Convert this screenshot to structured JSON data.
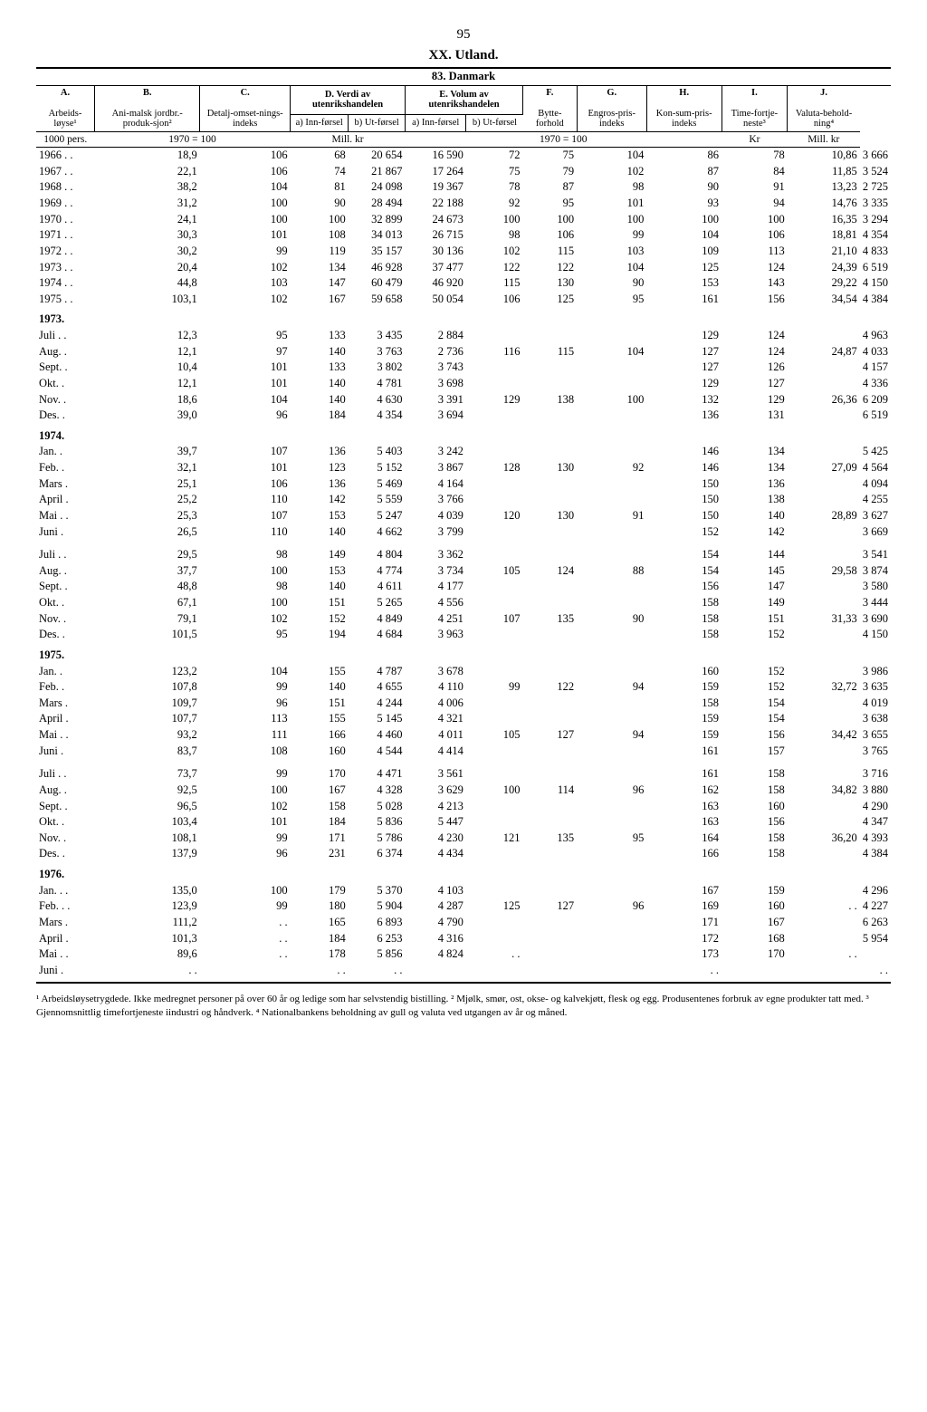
{
  "page_number": "95",
  "title": "XX. Utland.",
  "subtitle": "83. Danmark",
  "columns": {
    "A": "A.",
    "B": "B.",
    "C": "C.",
    "D": "D. Verdi av utenrikshandelen",
    "E": "E. Volum av utenrikshandelen",
    "F": "F.",
    "G": "G.",
    "H": "H.",
    "I": "I.",
    "J": "J."
  },
  "subheaders": {
    "A": "Arbeids-løyse¹",
    "B": "Ani-malsk jordbr.-produk-sjon²",
    "C": "Detalj-omset-nings-indeks",
    "Da": "a) Inn-førsel",
    "Db": "b) Ut-førsel",
    "Ea": "a) Inn-førsel",
    "Eb": "b) Ut-førsel",
    "F": "Bytte-forhold",
    "G": "Engros-pris-indeks",
    "H": "Kon-sum-pris-indeks",
    "I": "Time-fortje-neste³",
    "J": "Valuta-behold-ning⁴"
  },
  "units": {
    "A": "1000 pers.",
    "BCEF": "1970 = 100",
    "D": "Mill. kr",
    "GH": "1970 = 100",
    "I": "Kr",
    "J": "Mill. kr"
  },
  "years": [
    {
      "label": "1966 . .",
      "A": "18,9",
      "B": "106",
      "C": "68",
      "Da": "20 654",
      "Db": "16 590",
      "Ea": "72",
      "Eb": "75",
      "F": "104",
      "G": "86",
      "H": "78",
      "I": "10,86",
      "J": "3 666"
    },
    {
      "label": "1967 . .",
      "A": "22,1",
      "B": "106",
      "C": "74",
      "Da": "21 867",
      "Db": "17 264",
      "Ea": "75",
      "Eb": "79",
      "F": "102",
      "G": "87",
      "H": "84",
      "I": "11,85",
      "J": "3 524"
    },
    {
      "label": "1968 . .",
      "A": "38,2",
      "B": "104",
      "C": "81",
      "Da": "24 098",
      "Db": "19 367",
      "Ea": "78",
      "Eb": "87",
      "F": "98",
      "G": "90",
      "H": "91",
      "I": "13,23",
      "J": "2 725"
    },
    {
      "label": "1969 . .",
      "A": "31,2",
      "B": "100",
      "C": "90",
      "Da": "28 494",
      "Db": "22 188",
      "Ea": "92",
      "Eb": "95",
      "F": "101",
      "G": "93",
      "H": "94",
      "I": "14,76",
      "J": "3 335"
    },
    {
      "label": "1970 . .",
      "A": "24,1",
      "B": "100",
      "C": "100",
      "Da": "32 899",
      "Db": "24 673",
      "Ea": "100",
      "Eb": "100",
      "F": "100",
      "G": "100",
      "H": "100",
      "I": "16,35",
      "J": "3 294"
    },
    {
      "label": "1971 . .",
      "A": "30,3",
      "B": "101",
      "C": "108",
      "Da": "34 013",
      "Db": "26 715",
      "Ea": "98",
      "Eb": "106",
      "F": "99",
      "G": "104",
      "H": "106",
      "I": "18,81",
      "J": "4 354"
    },
    {
      "label": "1972 . .",
      "A": "30,2",
      "B": "99",
      "C": "119",
      "Da": "35 157",
      "Db": "30 136",
      "Ea": "102",
      "Eb": "115",
      "F": "103",
      "G": "109",
      "H": "113",
      "I": "21,10",
      "J": "4 833"
    },
    {
      "label": "1973 . .",
      "A": "20,4",
      "B": "102",
      "C": "134",
      "Da": "46 928",
      "Db": "37 477",
      "Ea": "122",
      "Eb": "122",
      "F": "104",
      "G": "125",
      "H": "124",
      "I": "24,39",
      "J": "6 519"
    },
    {
      "label": "1974 . .",
      "A": "44,8",
      "B": "103",
      "C": "147",
      "Da": "60 479",
      "Db": "46 920",
      "Ea": "115",
      "Eb": "130",
      "F": "90",
      "G": "153",
      "H": "143",
      "I": "29,22",
      "J": "4 150"
    },
    {
      "label": "1975 . .",
      "A": "103,1",
      "B": "102",
      "C": "167",
      "Da": "59 658",
      "Db": "50 054",
      "Ea": "106",
      "Eb": "125",
      "F": "95",
      "G": "161",
      "H": "156",
      "I": "34,54",
      "J": "4 384"
    }
  ],
  "sections": [
    {
      "header": "1973.",
      "rows": [
        {
          "label": "Juli  . .",
          "A": "12,3",
          "B": "95",
          "C": "133",
          "Da": "3 435",
          "Db": "2 884",
          "Ea": "",
          "Eb": "",
          "F": "",
          "G": "129",
          "H": "124",
          "I": "",
          "J": "4 963"
        },
        {
          "label": "Aug.  .",
          "A": "12,1",
          "B": "97",
          "C": "140",
          "Da": "3 763",
          "Db": "2 736",
          "Ea": "116",
          "Eb": "115",
          "F": "104",
          "G": "127",
          "H": "124",
          "I": "24,87",
          "J": "4 033"
        },
        {
          "label": "Sept. .",
          "A": "10,4",
          "B": "101",
          "C": "133",
          "Da": "3 802",
          "Db": "3 743",
          "Ea": "",
          "Eb": "",
          "F": "",
          "G": "127",
          "H": "126",
          "I": "",
          "J": "4 157"
        },
        {
          "label": "Okt.  .",
          "A": "12,1",
          "B": "101",
          "C": "140",
          "Da": "4 781",
          "Db": "3 698",
          "Ea": "",
          "Eb": "",
          "F": "",
          "G": "129",
          "H": "127",
          "I": "",
          "J": "4 336"
        },
        {
          "label": "Nov.  .",
          "A": "18,6",
          "B": "104",
          "C": "140",
          "Da": "4 630",
          "Db": "3 391",
          "Ea": "129",
          "Eb": "138",
          "F": "100",
          "G": "132",
          "H": "129",
          "I": "26,36",
          "J": "6 209"
        },
        {
          "label": "Des.  .",
          "A": "39,0",
          "B": "96",
          "C": "184",
          "Da": "4 354",
          "Db": "3 694",
          "Ea": "",
          "Eb": "",
          "F": "",
          "G": "136",
          "H": "131",
          "I": "",
          "J": "6 519"
        }
      ]
    },
    {
      "header": "1974.",
      "rows": [
        {
          "label": "Jan.  .",
          "A": "39,7",
          "B": "107",
          "C": "136",
          "Da": "5 403",
          "Db": "3 242",
          "Ea": "",
          "Eb": "",
          "F": "",
          "G": "146",
          "H": "134",
          "I": "",
          "J": "5 425"
        },
        {
          "label": "Feb.  .",
          "A": "32,1",
          "B": "101",
          "C": "123",
          "Da": "5 152",
          "Db": "3 867",
          "Ea": "128",
          "Eb": "130",
          "F": "92",
          "G": "146",
          "H": "134",
          "I": "27,09",
          "J": "4 564"
        },
        {
          "label": "Mars  .",
          "A": "25,1",
          "B": "106",
          "C": "136",
          "Da": "5 469",
          "Db": "4 164",
          "Ea": "",
          "Eb": "",
          "F": "",
          "G": "150",
          "H": "136",
          "I": "",
          "J": "4 094"
        },
        {
          "label": "April .",
          "A": "25,2",
          "B": "110",
          "C": "142",
          "Da": "5 559",
          "Db": "3 766",
          "Ea": "",
          "Eb": "",
          "F": "",
          "G": "150",
          "H": "138",
          "I": "",
          "J": "4 255"
        },
        {
          "label": "Mai  . .",
          "A": "25,3",
          "B": "107",
          "C": "153",
          "Da": "5 247",
          "Db": "4 039",
          "Ea": "120",
          "Eb": "130",
          "F": "91",
          "G": "150",
          "H": "140",
          "I": "28,89",
          "J": "3 627"
        },
        {
          "label": "Juni  .",
          "A": "26,5",
          "B": "110",
          "C": "140",
          "Da": "4 662",
          "Db": "3 799",
          "Ea": "",
          "Eb": "",
          "F": "",
          "G": "152",
          "H": "142",
          "I": "",
          "J": "3 669"
        }
      ]
    },
    {
      "header": "",
      "rows": [
        {
          "label": "Juli  . .",
          "A": "29,5",
          "B": "98",
          "C": "149",
          "Da": "4 804",
          "Db": "3 362",
          "Ea": "",
          "Eb": "",
          "F": "",
          "G": "154",
          "H": "144",
          "I": "",
          "J": "3 541"
        },
        {
          "label": "Aug.  .",
          "A": "37,7",
          "B": "100",
          "C": "153",
          "Da": "4 774",
          "Db": "3 734",
          "Ea": "105",
          "Eb": "124",
          "F": "88",
          "G": "154",
          "H": "145",
          "I": "29,58",
          "J": "3 874"
        },
        {
          "label": "Sept. .",
          "A": "48,8",
          "B": "98",
          "C": "140",
          "Da": "4 611",
          "Db": "4 177",
          "Ea": "",
          "Eb": "",
          "F": "",
          "G": "156",
          "H": "147",
          "I": "",
          "J": "3 580"
        },
        {
          "label": "Okt.  .",
          "A": "67,1",
          "B": "100",
          "C": "151",
          "Da": "5 265",
          "Db": "4 556",
          "Ea": "",
          "Eb": "",
          "F": "",
          "G": "158",
          "H": "149",
          "I": "",
          "J": "3 444"
        },
        {
          "label": "Nov.  .",
          "A": "79,1",
          "B": "102",
          "C": "152",
          "Da": "4 849",
          "Db": "4 251",
          "Ea": "107",
          "Eb": "135",
          "F": "90",
          "G": "158",
          "H": "151",
          "I": "31,33",
          "J": "3 690"
        },
        {
          "label": "Des.  .",
          "A": "101,5",
          "B": "95",
          "C": "194",
          "Da": "4 684",
          "Db": "3 963",
          "Ea": "",
          "Eb": "",
          "F": "",
          "G": "158",
          "H": "152",
          "I": "",
          "J": "4 150"
        }
      ]
    },
    {
      "header": "1975.",
      "rows": [
        {
          "label": "Jan.  .",
          "A": "123,2",
          "B": "104",
          "C": "155",
          "Da": "4 787",
          "Db": "3 678",
          "Ea": "",
          "Eb": "",
          "F": "",
          "G": "160",
          "H": "152",
          "I": "",
          "J": "3 986"
        },
        {
          "label": "Feb.  .",
          "A": "107,8",
          "B": "99",
          "C": "140",
          "Da": "4 655",
          "Db": "4 110",
          "Ea": "99",
          "Eb": "122",
          "F": "94",
          "G": "159",
          "H": "152",
          "I": "32,72",
          "J": "3 635"
        },
        {
          "label": "Mars  .",
          "A": "109,7",
          "B": "96",
          "C": "151",
          "Da": "4 244",
          "Db": "4 006",
          "Ea": "",
          "Eb": "",
          "F": "",
          "G": "158",
          "H": "154",
          "I": "",
          "J": "4 019"
        },
        {
          "label": "April .",
          "A": "107,7",
          "B": "113",
          "C": "155",
          "Da": "5 145",
          "Db": "4 321",
          "Ea": "",
          "Eb": "",
          "F": "",
          "G": "159",
          "H": "154",
          "I": "",
          "J": "3 638"
        },
        {
          "label": "Mai  . .",
          "A": "93,2",
          "B": "111",
          "C": "166",
          "Da": "4 460",
          "Db": "4 011",
          "Ea": "105",
          "Eb": "127",
          "F": "94",
          "G": "159",
          "H": "156",
          "I": "34,42",
          "J": "3 655"
        },
        {
          "label": "Juni  .",
          "A": "83,7",
          "B": "108",
          "C": "160",
          "Da": "4 544",
          "Db": "4 414",
          "Ea": "",
          "Eb": "",
          "F": "",
          "G": "161",
          "H": "157",
          "I": "",
          "J": "3 765"
        }
      ]
    },
    {
      "header": "",
      "rows": [
        {
          "label": "Juli  . .",
          "A": "73,7",
          "B": "99",
          "C": "170",
          "Da": "4 471",
          "Db": "3 561",
          "Ea": "",
          "Eb": "",
          "F": "",
          "G": "161",
          "H": "158",
          "I": "",
          "J": "3 716"
        },
        {
          "label": "Aug.  .",
          "A": "92,5",
          "B": "100",
          "C": "167",
          "Da": "4 328",
          "Db": "3 629",
          "Ea": "100",
          "Eb": "114",
          "F": "96",
          "G": "162",
          "H": "158",
          "I": "34,82",
          "J": "3 880"
        },
        {
          "label": "Sept. .",
          "A": "96,5",
          "B": "102",
          "C": "158",
          "Da": "5 028",
          "Db": "4 213",
          "Ea": "",
          "Eb": "",
          "F": "",
          "G": "163",
          "H": "160",
          "I": "",
          "J": "4 290"
        },
        {
          "label": "Okt.  .",
          "A": "103,4",
          "B": "101",
          "C": "184",
          "Da": "5 836",
          "Db": "5 447",
          "Ea": "",
          "Eb": "",
          "F": "",
          "G": "163",
          "H": "156",
          "I": "",
          "J": "4 347"
        },
        {
          "label": "Nov.  .",
          "A": "108,1",
          "B": "99",
          "C": "171",
          "Da": "5 786",
          "Db": "4 230",
          "Ea": "121",
          "Eb": "135",
          "F": "95",
          "G": "164",
          "H": "158",
          "I": "36,20",
          "J": "4 393"
        },
        {
          "label": "Des.  .",
          "A": "137,9",
          "B": "96",
          "C": "231",
          "Da": "6 374",
          "Db": "4 434",
          "Ea": "",
          "Eb": "",
          "F": "",
          "G": "166",
          "H": "158",
          "I": "",
          "J": "4 384"
        }
      ]
    },
    {
      "header": "1976.",
      "rows": [
        {
          "label": "Jan. . .",
          "A": "135,0",
          "B": "100",
          "C": "179",
          "Da": "5 370",
          "Db": "4 103",
          "Ea": "",
          "Eb": "",
          "F": "",
          "G": "167",
          "H": "159",
          "I": "",
          "J": "4 296"
        },
        {
          "label": "Feb. . .",
          "A": "123,9",
          "B": "99",
          "C": "180",
          "Da": "5 904",
          "Db": "4 287",
          "Ea": "125",
          "Eb": "127",
          "F": "96",
          "G": "169",
          "H": "160",
          "I": ". .",
          "J": "4 227"
        },
        {
          "label": "Mars  .",
          "A": "111,2",
          "B": ". .",
          "C": "165",
          "Da": "6 893",
          "Db": "4 790",
          "Ea": "",
          "Eb": "",
          "F": "",
          "G": "171",
          "H": "167",
          "I": "",
          "J": "6 263"
        },
        {
          "label": "April .",
          "A": "101,3",
          "B": ". .",
          "C": "184",
          "Da": "6 253",
          "Db": "4 316",
          "Ea": "",
          "Eb": "",
          "F": "",
          "G": "172",
          "H": "168",
          "I": "",
          "J": "5 954"
        },
        {
          "label": "Mai  . .",
          "A": "89,6",
          "B": ". .",
          "C": "178",
          "Da": "5 856",
          "Db": "4 824",
          "Ea": ". .",
          "Eb": "",
          "F": "",
          "G": "173",
          "H": "170",
          "I": ". .",
          "J": ""
        },
        {
          "label": "Juni  .",
          "A": ". .",
          "B": "",
          "C": ". .",
          "Da": ". .",
          "Db": "",
          "Ea": "",
          "Eb": "",
          "F": "",
          "G": ". .",
          "H": "",
          "I": "",
          "J": ". ."
        }
      ]
    }
  ],
  "footnotes": "¹ Arbeidsløysetrygdede. Ikke medregnet personer på over 60 år og ledige som har selvstendig bistilling.  ² Mjølk, smør, ost, okse- og kalvekjøtt, flesk og egg. Produsentenes forbruk av egne produkter tatt med.  ³ Gjennomsnittlig timefortjeneste iindustri og håndverk.  ⁴ Nationalbankens beholdning av gull og valuta ved utgangen av år og måned."
}
